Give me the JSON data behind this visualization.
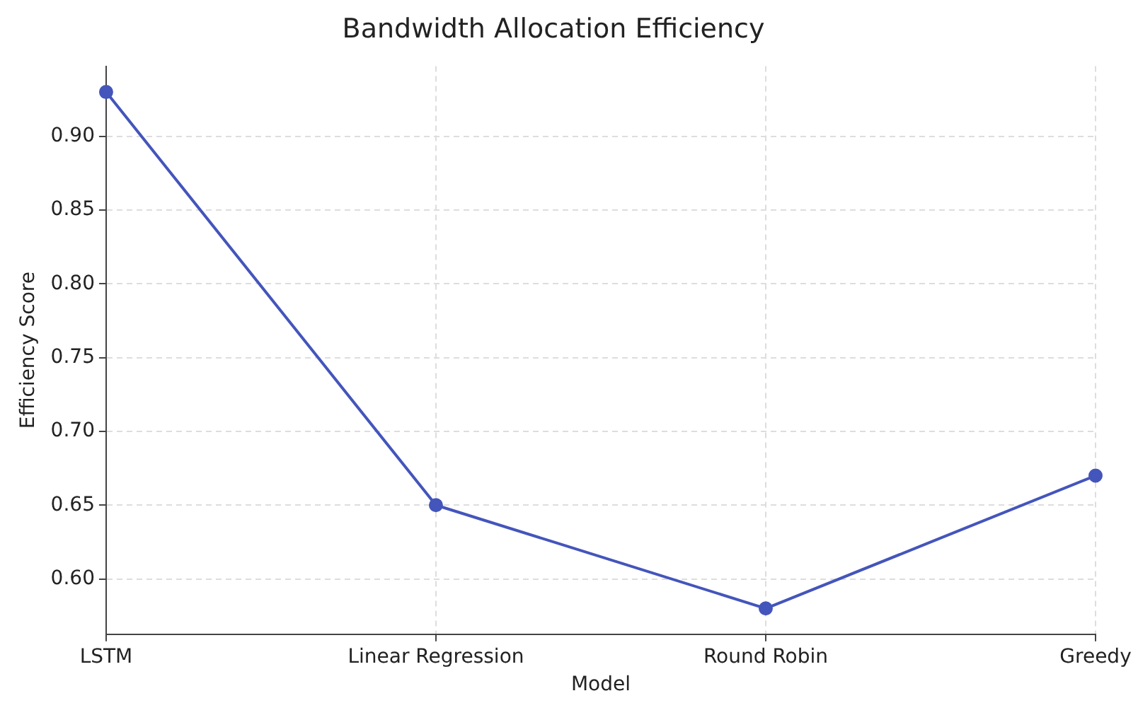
{
  "chart_data": {
    "type": "line",
    "title": "Bandwidth Allocation Efficiency",
    "xlabel": "Model",
    "ylabel": "Efficiency Score",
    "categories": [
      "LSTM",
      "Linear Regression",
      "Round Robin",
      "Greedy"
    ],
    "series": [
      {
        "color": "#4455bb",
        "values": [
          0.93,
          0.65,
          0.58,
          0.67
        ]
      }
    ],
    "ylim": [
      0.5625,
      0.9475
    ],
    "yticks": [
      {
        "value": 0.6,
        "label": "0.60"
      },
      0.65,
      {
        "value": 0.7,
        "label": "0.70"
      },
      0.75,
      {
        "value": 0.8,
        "label": "0.80"
      },
      0.85,
      {
        "value": 0.9,
        "label": "0.90"
      }
    ],
    "grid": true,
    "marker": "circle",
    "line_style": "solid",
    "legend": false
  }
}
